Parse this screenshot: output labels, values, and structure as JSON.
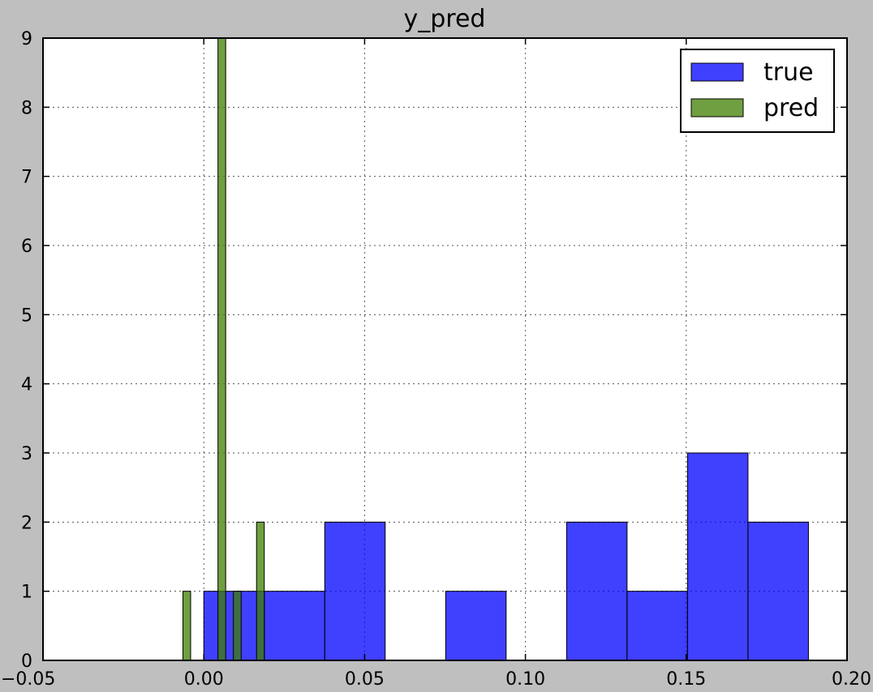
{
  "chart_data": {
    "type": "bar",
    "title": "y_pred",
    "xlabel": "",
    "ylabel": "",
    "xlim": [
      -0.05,
      0.2
    ],
    "ylim": [
      0,
      9
    ],
    "xticks": [
      -0.05,
      0.0,
      0.05,
      0.1,
      0.15,
      0.2
    ],
    "xtick_labels": [
      "−0.05",
      "0.00",
      "0.05",
      "0.10",
      "0.15",
      "0.20"
    ],
    "yticks": [
      0,
      1,
      2,
      3,
      4,
      5,
      6,
      7,
      8,
      9
    ],
    "ytick_labels": [
      "0",
      "1",
      "2",
      "3",
      "4",
      "5",
      "6",
      "7",
      "8",
      "9"
    ],
    "grid": true,
    "legend_position": "top-right",
    "series": [
      {
        "name": "true",
        "color": "#0000ff",
        "bins": [
          {
            "x0": 0.0,
            "x1": 0.0188,
            "count": 1
          },
          {
            "x0": 0.0188,
            "x1": 0.0376,
            "count": 1
          },
          {
            "x0": 0.0376,
            "x1": 0.0564,
            "count": 2
          },
          {
            "x0": 0.0564,
            "x1": 0.0752,
            "count": 0
          },
          {
            "x0": 0.0752,
            "x1": 0.094,
            "count": 1
          },
          {
            "x0": 0.094,
            "x1": 0.1128,
            "count": 0
          },
          {
            "x0": 0.1128,
            "x1": 0.1316,
            "count": 2
          },
          {
            "x0": 0.1316,
            "x1": 0.1504,
            "count": 1
          },
          {
            "x0": 0.1504,
            "x1": 0.1692,
            "count": 3
          },
          {
            "x0": 0.1692,
            "x1": 0.188,
            "count": 2
          }
        ]
      },
      {
        "name": "pred",
        "color": "#3f7f00",
        "bins": [
          {
            "x0": -0.0065,
            "x1": -0.0041,
            "count": 1
          },
          {
            "x0": 0.0044,
            "x1": 0.0068,
            "count": 9
          },
          {
            "x0": 0.0092,
            "x1": 0.0116,
            "count": 1
          },
          {
            "x0": 0.0164,
            "x1": 0.0188,
            "count": 2
          }
        ]
      }
    ]
  }
}
